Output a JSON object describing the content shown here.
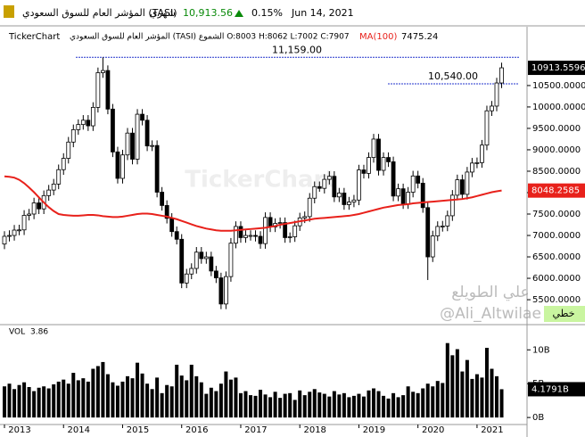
{
  "header": {
    "title": "المؤشر العام للسوق السعودي (TASI)",
    "period": "شهري",
    "last": "10,913.56",
    "change": "0.15%",
    "date": "Jun 14, 2021",
    "brand": "TickerChart",
    "info": "المؤشر العام للسوق السعودي (TASI) الشموع O:8003 H:8062 L:7002 C:7907",
    "watermark": "TickerChart",
    "author": "علي الطويلع",
    "handle": "@Ali_Altwilae",
    "line_button": "خطي"
  },
  "chart_data": {
    "type": "candlestick",
    "categories": [
      "2013",
      null,
      null,
      null,
      null,
      null,
      null,
      null,
      null,
      null,
      null,
      null,
      "2014",
      null,
      null,
      null,
      null,
      null,
      null,
      null,
      null,
      null,
      null,
      null,
      "2015",
      null,
      null,
      null,
      null,
      null,
      null,
      null,
      null,
      null,
      null,
      null,
      "2016",
      null,
      null,
      null,
      null,
      null,
      null,
      null,
      null,
      null,
      null,
      null,
      "2017",
      null,
      null,
      null,
      null,
      null,
      null,
      null,
      null,
      null,
      null,
      null,
      "2018",
      null,
      null,
      null,
      null,
      null,
      null,
      null,
      null,
      null,
      null,
      null,
      "2019",
      null,
      null,
      null,
      null,
      null,
      null,
      null,
      null,
      null,
      null,
      null,
      "2020",
      null,
      null,
      null,
      null,
      null,
      null,
      null,
      null,
      null,
      null,
      null,
      "2021",
      null,
      null,
      null,
      null,
      null
    ],
    "open": [
      6800,
      6980,
      7000,
      7125,
      7130,
      7470,
      7500,
      7760,
      7620,
      7930,
      8060,
      8200,
      8536,
      8800,
      9180,
      9470,
      9590,
      9690,
      9560,
      9990,
      10800,
      10850,
      9950,
      8950,
      8333,
      8880,
      9390,
      8780,
      9830,
      9690,
      9090,
      9100,
      8010,
      7700,
      7400,
      7090,
      6911,
      5890,
      6100,
      6230,
      6610,
      6460,
      6500,
      6170,
      6010,
      5400,
      6040,
      6820,
      7210,
      6950,
      7000,
      7000,
      6980,
      6810,
      7420,
      7200,
      7280,
      7300,
      6950,
      6970,
      7226,
      7410,
      7440,
      7870,
      8140,
      8100,
      8310,
      8380,
      7900,
      7990,
      7720,
      7780,
      7827,
      8530,
      8450,
      8820,
      9250,
      8520,
      8820,
      8720,
      7920,
      8090,
      7740,
      8010,
      8389,
      8220,
      7650,
      6500,
      6990,
      7210,
      7220,
      7460,
      7940,
      8300,
      7960,
      8480,
      8690,
      8700,
      9110,
      9910,
      10020,
      10560
    ],
    "high": [
      7100,
      7120,
      7245,
      7250,
      7590,
      7620,
      7880,
      7880,
      8050,
      8180,
      8320,
      8656,
      8920,
      9300,
      9590,
      9710,
      9810,
      9810,
      10110,
      10920,
      11159,
      10970,
      10070,
      9070,
      9000,
      9510,
      9510,
      9950,
      9950,
      9810,
      9220,
      9220,
      8130,
      7820,
      7520,
      7210,
      7031,
      6220,
      6350,
      6730,
      6730,
      6620,
      6620,
      6290,
      6130,
      6160,
      6940,
      7330,
      7330,
      7120,
      7120,
      7120,
      7100,
      7540,
      7540,
      7400,
      7420,
      7420,
      7070,
      7346,
      7530,
      7560,
      7990,
      8260,
      8260,
      8430,
      8500,
      8500,
      8110,
      8110,
      7900,
      7947,
      8650,
      8650,
      8940,
      9370,
      9370,
      8940,
      8940,
      8840,
      8210,
      8210,
      8130,
      8509,
      8509,
      8340,
      7770,
      7110,
      7330,
      7340,
      7580,
      8060,
      8420,
      8420,
      8600,
      8810,
      8820,
      9230,
      10030,
      10140,
      10680,
      11034
    ],
    "low": [
      6680,
      6860,
      6880,
      7005,
      7010,
      7350,
      7380,
      7500,
      7500,
      7810,
      7940,
      8080,
      8416,
      8680,
      9060,
      9350,
      9470,
      9440,
      9440,
      9870,
      10680,
      9830,
      8830,
      8213,
      8213,
      8760,
      8660,
      8660,
      9570,
      8970,
      8970,
      7890,
      7580,
      7280,
      6970,
      6791,
      5770,
      5770,
      5980,
      6110,
      6340,
      6340,
      6050,
      5890,
      5280,
      5280,
      5920,
      6700,
      6830,
      6830,
      6880,
      6860,
      6690,
      6690,
      7080,
      7080,
      7160,
      6830,
      6830,
      6850,
      7106,
      7290,
      7320,
      7750,
      8020,
      7980,
      8190,
      7780,
      7780,
      7600,
      7600,
      7660,
      7707,
      8330,
      8330,
      8700,
      8400,
      8400,
      8600,
      7800,
      7800,
      7620,
      7620,
      7890,
      8100,
      7530,
      5960,
      6380,
      6870,
      7090,
      7100,
      7340,
      7820,
      7840,
      7840,
      8360,
      8570,
      8580,
      8990,
      9790,
      9900,
      10440
    ],
    "close": [
      6980,
      7000,
      7125,
      7130,
      7470,
      7500,
      7760,
      7620,
      7930,
      8060,
      8200,
      8536,
      8800,
      9180,
      9470,
      9590,
      9690,
      9560,
      9990,
      10800,
      10850,
      9950,
      8950,
      8333,
      8880,
      9390,
      8780,
      9830,
      9690,
      9090,
      9100,
      8010,
      7700,
      7400,
      7090,
      6911,
      5890,
      6100,
      6230,
      6610,
      6460,
      6500,
      6170,
      6010,
      5400,
      6040,
      6820,
      7210,
      6950,
      7000,
      7000,
      6980,
      6810,
      7420,
      7200,
      7280,
      7300,
      6950,
      6970,
      7226,
      7410,
      7440,
      7870,
      8140,
      8100,
      8310,
      8380,
      7900,
      7990,
      7720,
      7780,
      7827,
      8530,
      8450,
      8820,
      9250,
      8520,
      8820,
      8720,
      7920,
      8090,
      7740,
      8010,
      8389,
      8220,
      7650,
      6500,
      6990,
      7210,
      7220,
      7460,
      7940,
      8300,
      7960,
      8480,
      8690,
      8700,
      9110,
      9910,
      10020,
      10560,
      10913.5596
    ],
    "ma": {
      "name": "MA(100)",
      "last": "7475.24",
      "color": "#e8211b",
      "values": [
        8380,
        8370,
        8350,
        8300,
        8220,
        8120,
        8010,
        7890,
        7770,
        7660,
        7570,
        7500,
        7480,
        7470,
        7460,
        7460,
        7470,
        7480,
        7480,
        7470,
        7450,
        7440,
        7430,
        7430,
        7440,
        7460,
        7480,
        7500,
        7510,
        7510,
        7500,
        7480,
        7460,
        7440,
        7410,
        7380,
        7340,
        7300,
        7260,
        7220,
        7190,
        7160,
        7140,
        7120,
        7110,
        7110,
        7110,
        7120,
        7130,
        7140,
        7150,
        7160,
        7170,
        7180,
        7200,
        7220,
        7250,
        7270,
        7290,
        7310,
        7330,
        7350,
        7370,
        7390,
        7400,
        7410,
        7420,
        7430,
        7440,
        7450,
        7460,
        7480,
        7500,
        7530,
        7560,
        7590,
        7620,
        7650,
        7670,
        7690,
        7710,
        7720,
        7730,
        7750,
        7760,
        7770,
        7780,
        7790,
        7800,
        7810,
        7820,
        7830,
        7840,
        7850,
        7870,
        7890,
        7920,
        7950,
        7980,
        8010,
        8030,
        8048.2585
      ]
    },
    "ylim": [
      4960,
      11560
    ],
    "yticks": [
      {
        "value": 5500,
        "label": "5500.0000"
      },
      {
        "value": 6000,
        "label": "6000.0000"
      },
      {
        "value": 6500,
        "label": "6500.0000"
      },
      {
        "value": 7000,
        "label": "7000.0000"
      },
      {
        "value": 7500,
        "label": "7500.0000"
      },
      {
        "value": 8000,
        "label": "8000.0000"
      },
      {
        "value": 8500,
        "label": "8500.0000"
      },
      {
        "value": 9000,
        "label": "9000.0000"
      },
      {
        "value": 9500,
        "label": "9500.0000"
      },
      {
        "value": 10000,
        "label": "10000.0000"
      },
      {
        "value": 10500,
        "label": "10500.0000"
      }
    ],
    "annotations": [
      {
        "value": 11159,
        "label": "11,159.00"
      },
      {
        "value": 10540,
        "label": "10,540.00"
      }
    ],
    "volume": {
      "name": "VOL",
      "last": "3.86",
      "last_label": "4.1791B",
      "ylim": [
        -1.3,
        13.2
      ],
      "yticks": [
        {
          "value": 0,
          "label": "0B"
        },
        {
          "value": 5,
          "label": "5B"
        },
        {
          "value": 10,
          "label": "10B"
        }
      ],
      "values": [
        4.6,
        5.0,
        4.2,
        4.8,
        5.2,
        4.5,
        3.9,
        4.4,
        4.6,
        4.3,
        4.9,
        5.3,
        5.6,
        5.0,
        6.6,
        5.5,
        5.8,
        5.3,
        7.2,
        7.6,
        8.2,
        6.4,
        5.2,
        4.7,
        5.3,
        6.1,
        5.8,
        8.1,
        6.5,
        5.0,
        4.2,
        5.9,
        3.6,
        4.8,
        4.6,
        7.8,
        6.2,
        5.5,
        7.8,
        6.1,
        5.2,
        3.5,
        4.4,
        3.9,
        5.0,
        6.8,
        5.6,
        5.9,
        3.6,
        3.9,
        3.3,
        3.2,
        4.1,
        3.4,
        3.0,
        3.8,
        2.9,
        3.5,
        3.6,
        2.6,
        4.0,
        3.3,
        3.8,
        4.2,
        3.7,
        3.5,
        3.1,
        3.9,
        3.4,
        3.6,
        3.0,
        3.2,
        3.5,
        3.1,
        4.0,
        4.3,
        3.9,
        3.2,
        2.8,
        3.6,
        3.0,
        3.3,
        4.6,
        3.8,
        3.6,
        4.3,
        5.0,
        4.6,
        5.4,
        5.1,
        11.0,
        9.2,
        10.1,
        6.8,
        8.5,
        5.7,
        6.4,
        5.9,
        10.3,
        7.2,
        6.1,
        4.1791
      ]
    }
  }
}
